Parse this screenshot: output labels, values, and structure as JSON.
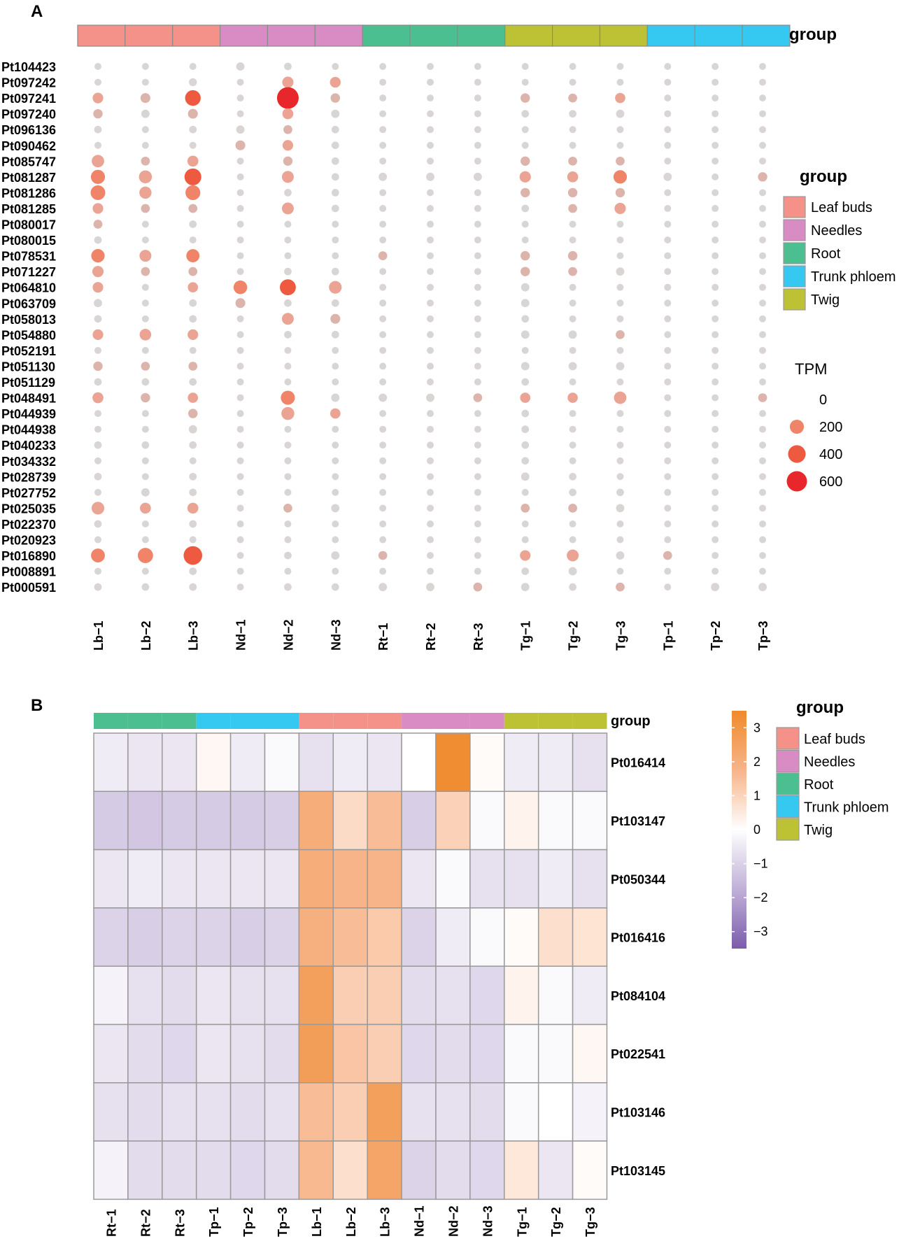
{
  "colors": {
    "Leaf buds": "#F4928A",
    "Needles": "#D98CC4",
    "Root": "#4BBF8F",
    "Trunk phloem": "#35C9F2",
    "Twig": "#BDC234"
  },
  "chart_data": [
    {
      "panel": "A",
      "type": "dotplot",
      "group_bar_label": "group",
      "legend": {
        "group_title": "group",
        "groups": [
          "Leaf buds",
          "Needles",
          "Root",
          "Trunk phloem",
          "Twig"
        ],
        "size_title": "TPM",
        "size_values": [
          "0",
          "200",
          "400",
          "600"
        ]
      },
      "samples": [
        "Lb−1",
        "Lb−2",
        "Lb−3",
        "Nd−1",
        "Nd−2",
        "Nd−3",
        "Rt−1",
        "Rt−2",
        "Rt−3",
        "Tg−1",
        "Tg−2",
        "Tg−3",
        "Tp−1",
        "Tp−2",
        "Tp−3"
      ],
      "sample_groups": [
        "Leaf buds",
        "Leaf buds",
        "Leaf buds",
        "Needles",
        "Needles",
        "Needles",
        "Root",
        "Root",
        "Root",
        "Twig",
        "Twig",
        "Twig",
        "Trunk phloem",
        "Trunk phloem",
        "Trunk phloem"
      ],
      "genes": [
        "Pt104423",
        "Pt097242",
        "Pt097241",
        "Pt097240",
        "Pt096136",
        "Pt090462",
        "Pt085747",
        "Pt081287",
        "Pt081286",
        "Pt081285",
        "Pt080017",
        "Pt080015",
        "Pt078531",
        "Pt071227",
        "Pt064810",
        "Pt063709",
        "Pt058013",
        "Pt054880",
        "Pt052191",
        "Pt051130",
        "Pt051129",
        "Pt048491",
        "Pt044939",
        "Pt044938",
        "Pt040233",
        "Pt034332",
        "Pt028739",
        "Pt027752",
        "Pt025035",
        "Pt022370",
        "Pt020923",
        "Pt016890",
        "Pt008891",
        "Pt000591"
      ],
      "tpm": [
        [
          5,
          5,
          5,
          20,
          10,
          5,
          5,
          5,
          5,
          5,
          5,
          5,
          5,
          5,
          5
        ],
        [
          5,
          5,
          15,
          5,
          90,
          75,
          5,
          5,
          5,
          5,
          5,
          5,
          5,
          5,
          5
        ],
        [
          70,
          50,
          280,
          5,
          720,
          40,
          5,
          5,
          5,
          40,
          30,
          60,
          5,
          5,
          5
        ],
        [
          40,
          20,
          50,
          5,
          80,
          20,
          5,
          5,
          5,
          10,
          10,
          20,
          5,
          5,
          5
        ],
        [
          10,
          5,
          10,
          20,
          30,
          10,
          5,
          5,
          5,
          5,
          5,
          5,
          5,
          5,
          5
        ],
        [
          5,
          5,
          5,
          50,
          70,
          10,
          5,
          5,
          5,
          5,
          5,
          5,
          5,
          5,
          5
        ],
        [
          130,
          30,
          80,
          5,
          40,
          10,
          5,
          5,
          5,
          40,
          30,
          30,
          5,
          5,
          5
        ],
        [
          200,
          150,
          350,
          5,
          110,
          10,
          20,
          20,
          20,
          90,
          80,
          170,
          20,
          5,
          40
        ],
        [
          230,
          120,
          240,
          5,
          10,
          10,
          5,
          5,
          5,
          40,
          40,
          40,
          5,
          5,
          5
        ],
        [
          70,
          30,
          30,
          5,
          110,
          10,
          5,
          5,
          5,
          10,
          30,
          90,
          5,
          5,
          5
        ],
        [
          30,
          5,
          10,
          5,
          5,
          5,
          5,
          5,
          5,
          5,
          5,
          5,
          5,
          5,
          5
        ],
        [
          10,
          5,
          5,
          5,
          5,
          5,
          5,
          5,
          5,
          5,
          5,
          5,
          5,
          5,
          5
        ],
        [
          170,
          110,
          160,
          5,
          5,
          5,
          30,
          5,
          5,
          40,
          40,
          5,
          5,
          5,
          5
        ],
        [
          90,
          30,
          30,
          5,
          10,
          10,
          5,
          5,
          5,
          40,
          30,
          20,
          5,
          5,
          5
        ],
        [
          70,
          5,
          60,
          180,
          300,
          140,
          5,
          5,
          5,
          20,
          5,
          5,
          5,
          5,
          5
        ],
        [
          20,
          5,
          10,
          50,
          10,
          10,
          5,
          5,
          5,
          20,
          5,
          5,
          5,
          5,
          5
        ],
        [
          10,
          5,
          10,
          5,
          110,
          50,
          5,
          5,
          5,
          10,
          5,
          5,
          5,
          5,
          5
        ],
        [
          70,
          100,
          70,
          5,
          10,
          10,
          5,
          5,
          5,
          20,
          20,
          30,
          5,
          5,
          5
        ],
        [
          5,
          5,
          5,
          5,
          5,
          5,
          5,
          5,
          5,
          5,
          5,
          5,
          5,
          5,
          5
        ],
        [
          40,
          30,
          30,
          5,
          5,
          5,
          5,
          5,
          5,
          20,
          20,
          20,
          5,
          5,
          5
        ],
        [
          10,
          10,
          10,
          5,
          5,
          5,
          5,
          5,
          5,
          10,
          5,
          5,
          5,
          5,
          5
        ],
        [
          80,
          40,
          60,
          5,
          200,
          20,
          20,
          20,
          30,
          60,
          60,
          130,
          5,
          5,
          30
        ],
        [
          5,
          5,
          40,
          5,
          150,
          60,
          5,
          5,
          5,
          10,
          5,
          5,
          5,
          5,
          5
        ],
        [
          5,
          5,
          20,
          5,
          5,
          5,
          5,
          5,
          5,
          10,
          5,
          5,
          5,
          5,
          5
        ],
        [
          10,
          10,
          10,
          5,
          5,
          5,
          5,
          5,
          5,
          10,
          5,
          5,
          5,
          5,
          5
        ],
        [
          5,
          5,
          5,
          5,
          5,
          5,
          5,
          5,
          5,
          10,
          5,
          5,
          5,
          5,
          5
        ],
        [
          10,
          5,
          10,
          5,
          5,
          5,
          5,
          5,
          5,
          20,
          10,
          5,
          5,
          5,
          5
        ],
        [
          5,
          20,
          10,
          5,
          5,
          5,
          5,
          5,
          5,
          5,
          10,
          10,
          5,
          5,
          5
        ],
        [
          140,
          80,
          80,
          5,
          30,
          20,
          5,
          5,
          5,
          30,
          30,
          20,
          5,
          5,
          5
        ],
        [
          10,
          5,
          10,
          5,
          5,
          5,
          5,
          5,
          5,
          5,
          5,
          5,
          5,
          5,
          5
        ],
        [
          5,
          5,
          5,
          5,
          5,
          5,
          5,
          5,
          5,
          5,
          5,
          5,
          5,
          5,
          5
        ],
        [
          190,
          260,
          470,
          5,
          10,
          20,
          30,
          5,
          5,
          70,
          110,
          20,
          30,
          5,
          5
        ],
        [
          5,
          5,
          10,
          5,
          5,
          5,
          5,
          5,
          5,
          10,
          20,
          5,
          5,
          5,
          5
        ],
        [
          10,
          10,
          10,
          5,
          10,
          10,
          20,
          20,
          30,
          20,
          10,
          30,
          5,
          20,
          20
        ]
      ]
    },
    {
      "panel": "B",
      "type": "heatmap",
      "group_bar_label": "group",
      "legend": {
        "group_title": "group",
        "groups": [
          "Leaf buds",
          "Needles",
          "Root",
          "Trunk phloem",
          "Twig"
        ],
        "scale_ticks": [
          "3",
          "2",
          "1",
          "0",
          "−1",
          "−2",
          "−3"
        ],
        "range": [
          -3.5,
          3.5
        ]
      },
      "samples": [
        "Rt−1",
        "Rt−2",
        "Rt−3",
        "Tp−1",
        "Tp−2",
        "Tp−3",
        "Lb−1",
        "Lb−2",
        "Lb−3",
        "Nd−1",
        "Nd−2",
        "Nd−3",
        "Tg−1",
        "Tg−2",
        "Tg−3"
      ],
      "sample_groups": [
        "Root",
        "Root",
        "Root",
        "Trunk phloem",
        "Trunk phloem",
        "Trunk phloem",
        "Leaf buds",
        "Leaf buds",
        "Leaf buds",
        "Needles",
        "Needles",
        "Needles",
        "Twig",
        "Twig",
        "Twig"
      ],
      "genes": [
        "Pt016414",
        "Pt103147",
        "Pt050344",
        "Pt016416",
        "Pt084104",
        "Pt022541",
        "Pt103146",
        "Pt103145"
      ],
      "values": [
        [
          -0.3,
          -0.4,
          -0.4,
          0.2,
          -0.3,
          -0.1,
          -0.5,
          -0.3,
          -0.4,
          0.0,
          3.4,
          0.1,
          -0.3,
          -0.3,
          -0.5
        ],
        [
          -1.0,
          -1.1,
          -1.0,
          -1.0,
          -1.0,
          -0.9,
          2.1,
          0.9,
          1.6,
          -0.9,
          1.1,
          -0.1,
          0.3,
          -0.1,
          -0.1
        ],
        [
          -0.4,
          -0.3,
          -0.4,
          -0.4,
          -0.4,
          -0.4,
          2.1,
          1.8,
          1.8,
          -0.4,
          -0.1,
          -0.5,
          -0.5,
          -0.3,
          -0.5
        ],
        [
          -0.8,
          -0.9,
          -0.8,
          -0.8,
          -0.9,
          -0.8,
          2.0,
          1.6,
          1.3,
          -0.8,
          -0.3,
          -0.1,
          0.1,
          0.8,
          0.7
        ],
        [
          -0.2,
          -0.5,
          -0.6,
          -0.4,
          -0.5,
          -0.5,
          2.6,
          1.2,
          1.2,
          -0.6,
          -0.5,
          -0.7,
          0.3,
          -0.1,
          -0.3
        ],
        [
          -0.4,
          -0.6,
          -0.7,
          -0.4,
          -0.5,
          -0.6,
          2.7,
          1.4,
          1.2,
          -0.7,
          -0.6,
          -0.7,
          -0.1,
          -0.1,
          0.2
        ],
        [
          -0.5,
          -0.6,
          -0.5,
          -0.5,
          -0.6,
          -0.5,
          1.6,
          1.2,
          2.6,
          -0.5,
          -0.5,
          -0.6,
          -0.1,
          0.0,
          -0.2
        ],
        [
          -0.2,
          -0.6,
          -0.6,
          -0.6,
          -0.7,
          -0.6,
          1.7,
          0.8,
          2.4,
          -0.8,
          -0.6,
          -0.7,
          0.6,
          -0.4,
          0.1
        ]
      ]
    }
  ]
}
